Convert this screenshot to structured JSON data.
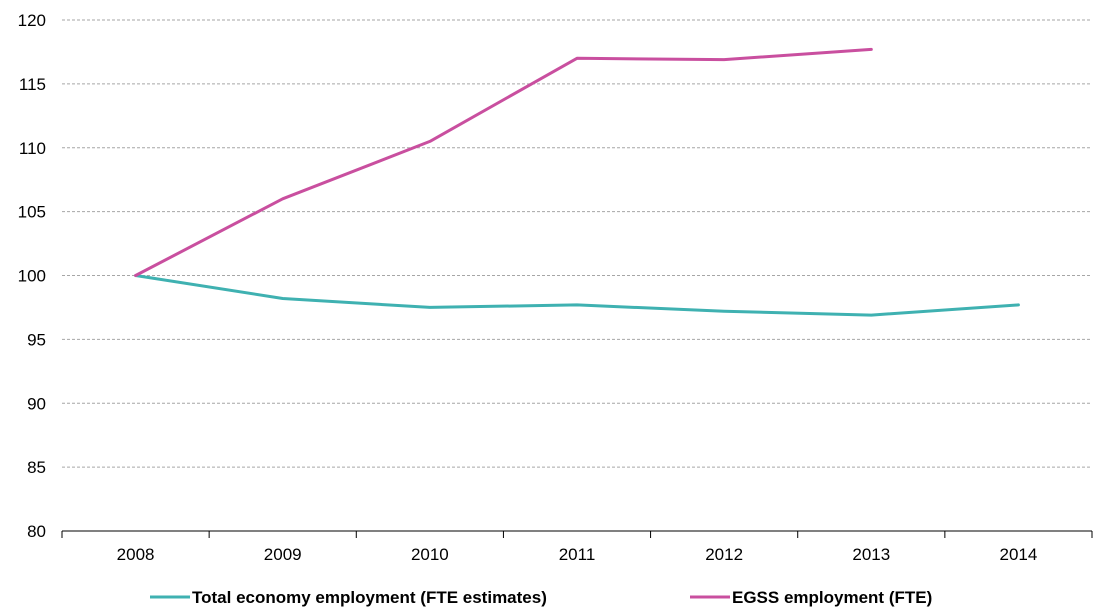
{
  "chart_data": {
    "type": "line",
    "title": "",
    "xlabel": "",
    "ylabel": "",
    "categories": [
      "2008",
      "2009",
      "2010",
      "2011",
      "2012",
      "2013",
      "2014"
    ],
    "ylim": [
      80,
      120
    ],
    "yticks": [
      80,
      85,
      90,
      95,
      100,
      105,
      110,
      115,
      120
    ],
    "grid": "horizontal dashed",
    "legend_position": "bottom",
    "series": [
      {
        "name": "Total economy employment (FTE estimates)",
        "color": "#3fb1b1",
        "values": [
          100,
          98.2,
          97.5,
          97.7,
          97.2,
          96.9,
          97.7
        ]
      },
      {
        "name": "EGSS employment (FTE)",
        "color": "#c94f9f",
        "values": [
          100,
          106,
          110.5,
          117,
          116.9,
          117.7,
          null
        ]
      }
    ]
  }
}
